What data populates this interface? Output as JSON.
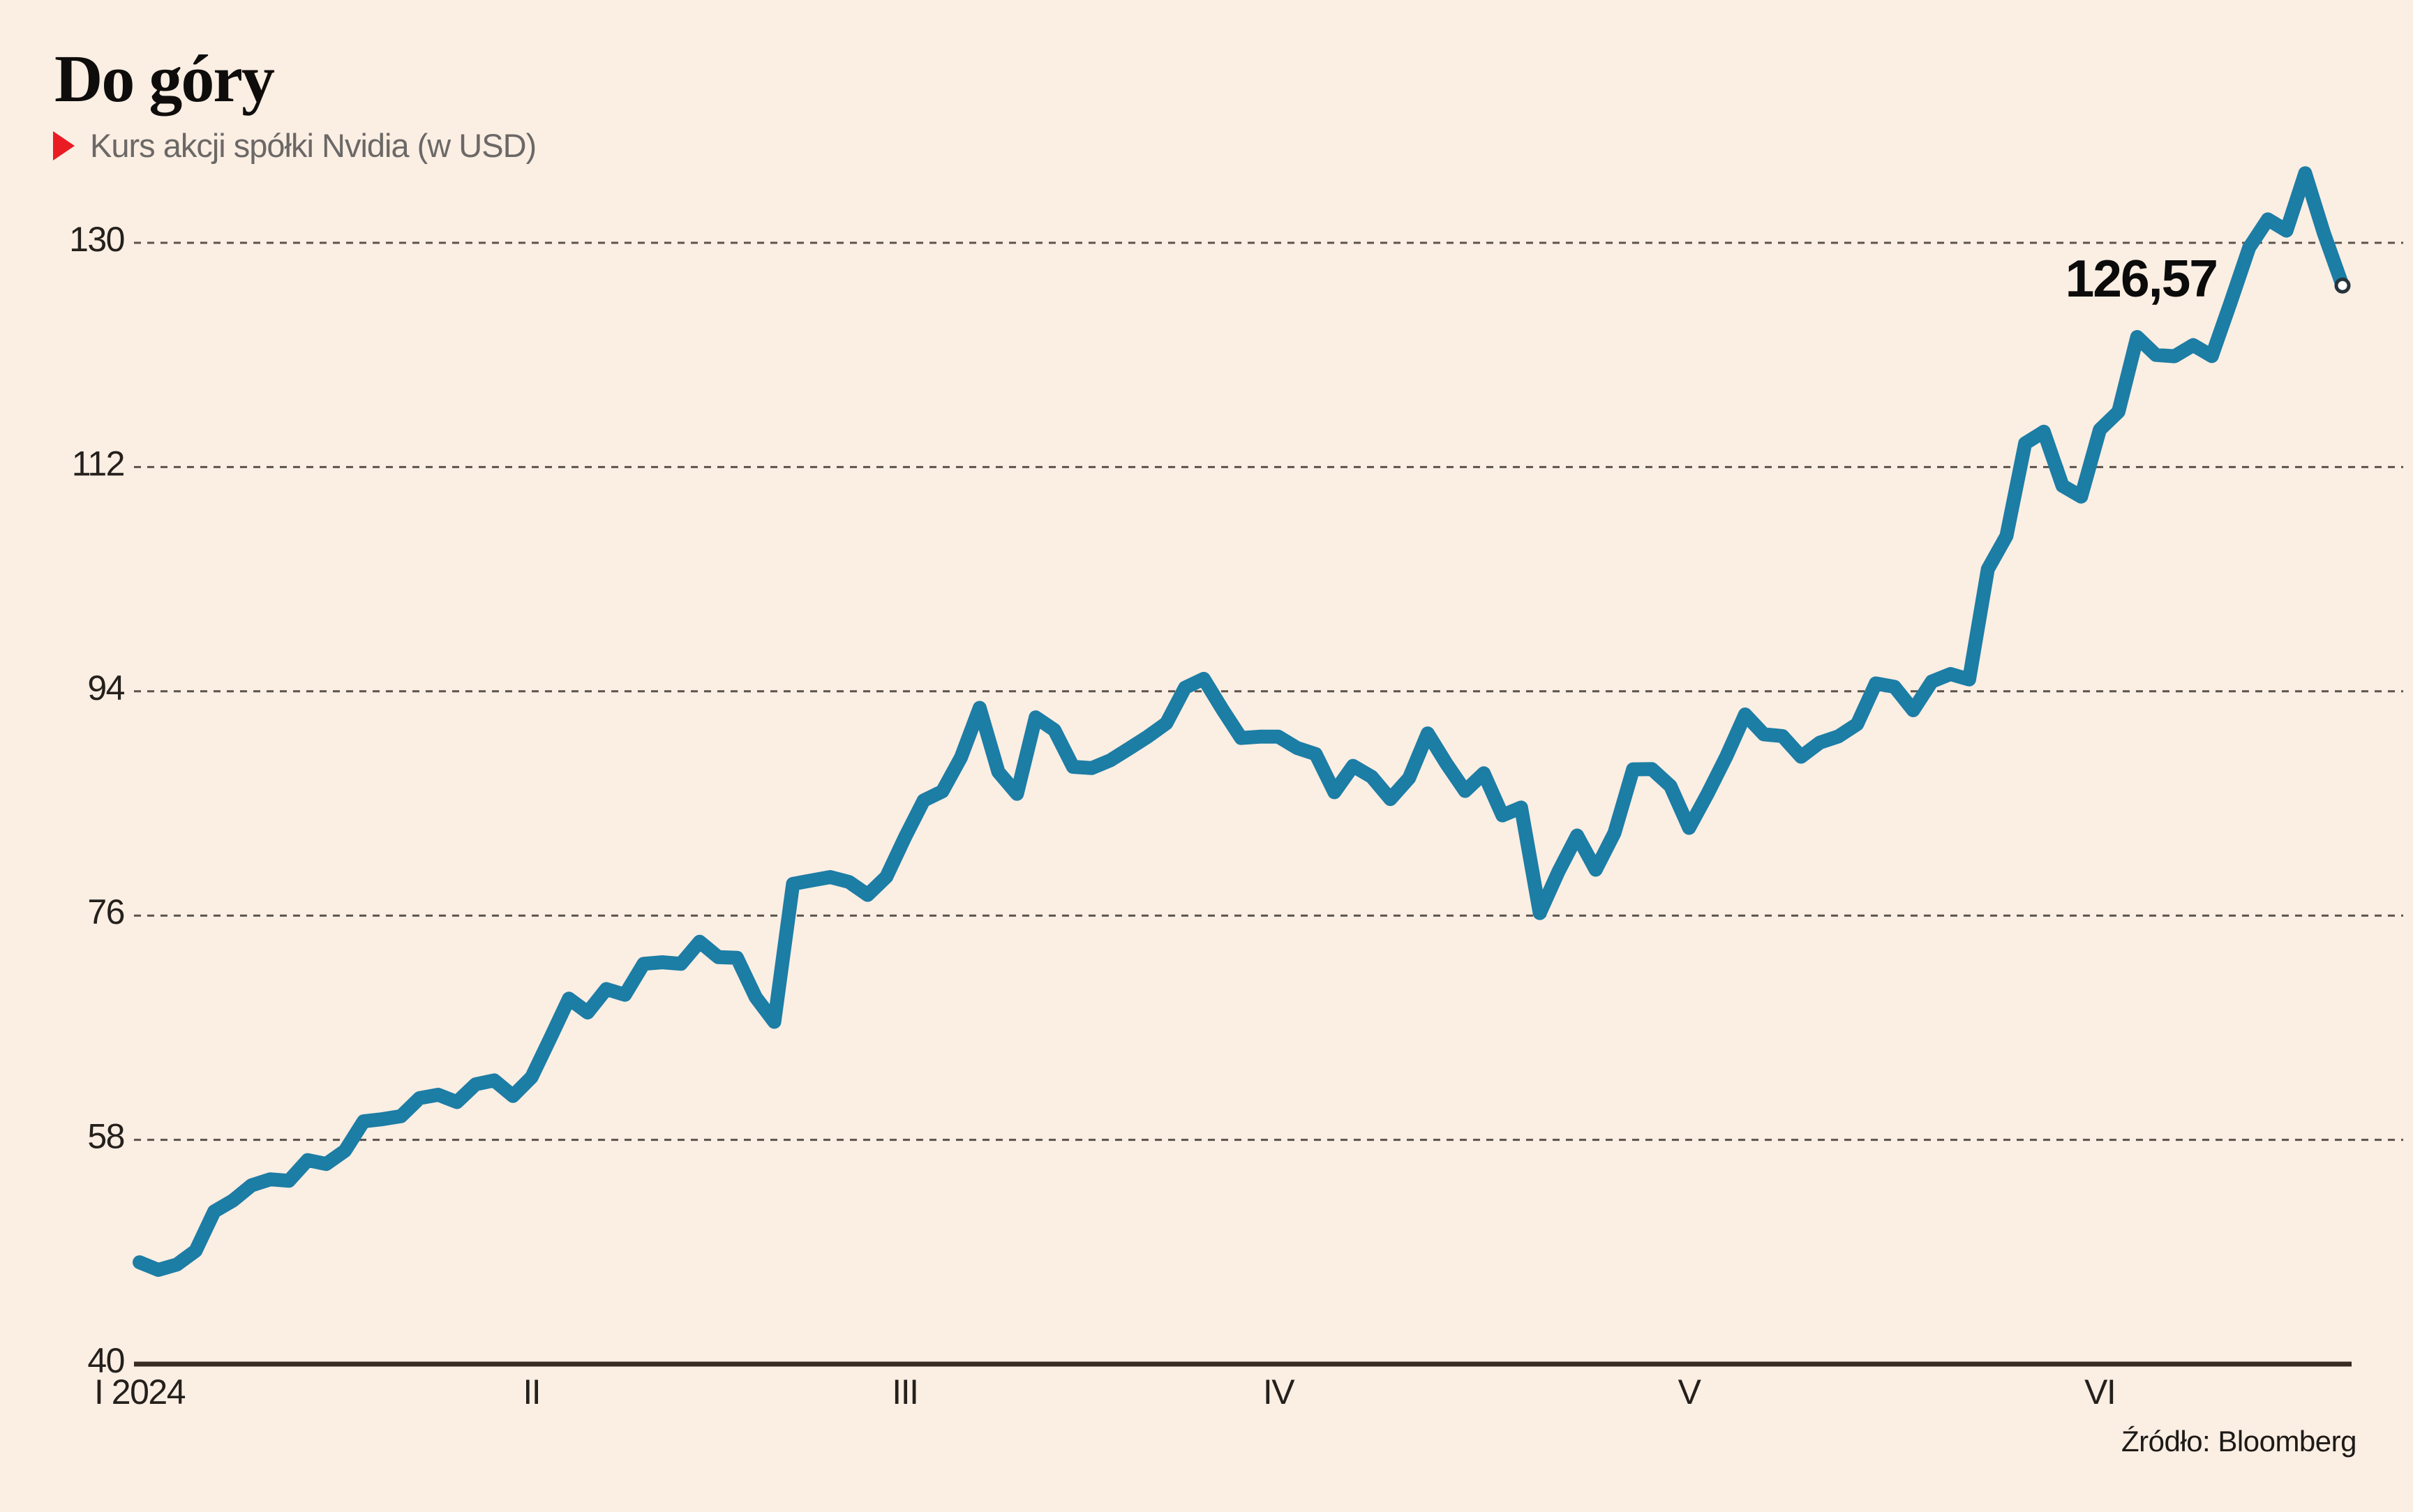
{
  "header": {
    "title": "Do góry",
    "subtitle": "Kurs akcji spółki Nvidia (w USD)"
  },
  "annotation": {
    "last_price_label": "126,57"
  },
  "footer": {
    "source": "Źródło: Bloomberg"
  },
  "colors": {
    "background": "#fbeee3",
    "line": "#1c7da5",
    "axis": "#362c22",
    "grid": "#5a544c",
    "tick": "#24201c",
    "title": "#0e0d0b",
    "subtitle": "#6b6866",
    "accent_red": "#e91c24",
    "annotation": "#0b0b0b",
    "source": "#1d1a17",
    "marker_fill": "#ffffff",
    "marker_ring": "#26343c"
  },
  "chart_data": {
    "type": "line",
    "title": "Do góry",
    "subtitle": "Kurs akcji spółki Nvidia (w USD)",
    "currency": "USD",
    "grid": "horizontal-dashed",
    "legend": "none",
    "ylim": [
      40,
      137
    ],
    "y_ticks": [
      130,
      112,
      94,
      76,
      58,
      40
    ],
    "x_ticks": [
      {
        "label": "I 2024",
        "index": 0,
        "align": "start"
      },
      {
        "label": "II",
        "index": 21,
        "align": "middle"
      },
      {
        "label": "III",
        "index": 41,
        "align": "middle"
      },
      {
        "label": "IV",
        "index": 61,
        "align": "middle"
      },
      {
        "label": "V",
        "index": 83,
        "align": "middle"
      },
      {
        "label": "VI",
        "index": 105,
        "align": "middle"
      }
    ],
    "last_value": 126.57,
    "last_value_label": "126,57",
    "end_marker": true,
    "series": [
      {
        "name": "Nvidia",
        "values": [
          48.17,
          47.56,
          47.99,
          49.09,
          52.25,
          53.13,
          54.35,
          54.83,
          54.71,
          56.37,
          56.06,
          57.12,
          59.49,
          59.66,
          59.89,
          61.35,
          61.62,
          61.03,
          62.46,
          62.77,
          61.52,
          63.03,
          66.16,
          69.33,
          68.22,
          70.1,
          69.64,
          72.13,
          72.25,
          72.13,
          73.9,
          72.66,
          72.61,
          69.45,
          67.47,
          78.54,
          78.82,
          79.09,
          78.7,
          77.66,
          79.11,
          82.28,
          85.24,
          85.96,
          88.7,
          92.67,
          87.53,
          85.77,
          91.91,
          90.89,
          87.94,
          87.84,
          88.46,
          89.4,
          90.36,
          91.44,
          94.29,
          95.0,
          92.56,
          90.25,
          90.36,
          90.36,
          89.45,
          88.96,
          85.9,
          88.01,
          87.13,
          85.35,
          87.04,
          90.62,
          88.19,
          86.0,
          87.42,
          84.04,
          84.67,
          76.2,
          79.52,
          82.42,
          79.68,
          82.63,
          87.74,
          87.76,
          86.4,
          83.04,
          85.81,
          88.79,
          92.14,
          90.55,
          90.41,
          88.75,
          89.88,
          90.38,
          91.36,
          94.63,
          94.36,
          92.48,
          94.78,
          95.39,
          94.95,
          103.8,
          106.47,
          113.9,
          114.83,
          110.5,
          109.63,
          115.0,
          116.44,
          122.44,
          121.0,
          120.89,
          121.79,
          120.91,
          125.2,
          129.61,
          131.88,
          130.98,
          135.58,
          130.78,
          126.57
        ]
      }
    ]
  }
}
